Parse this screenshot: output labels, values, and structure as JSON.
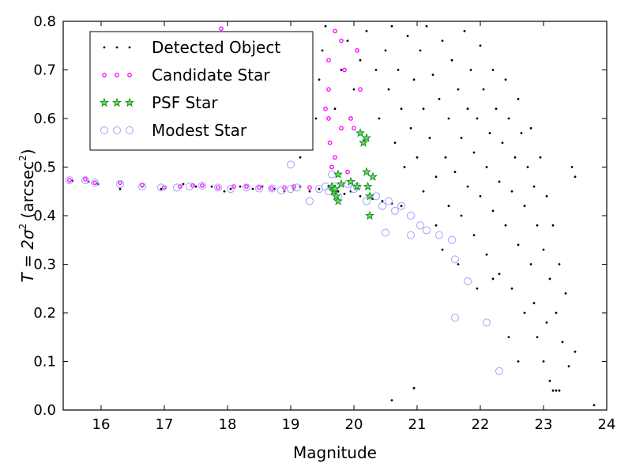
{
  "chart_data": {
    "type": "scatter",
    "title": "",
    "xlabel": "Magnitude",
    "ylabel_prefix": "T = 2σ",
    "ylabel_unit_open": " (arcsec",
    "ylabel_unit_close": ")",
    "superscript": "2",
    "xlim": [
      15.4,
      24.0
    ],
    "ylim": [
      0.0,
      0.8
    ],
    "x_ticks": [
      16,
      17,
      18,
      19,
      20,
      21,
      22,
      23,
      24
    ],
    "x_tick_labels": [
      "16",
      "17",
      "18",
      "19",
      "20",
      "21",
      "22",
      "23",
      "24"
    ],
    "y_ticks": [
      0.0,
      0.1,
      0.2,
      0.3,
      0.4,
      0.5,
      0.6,
      0.7,
      0.8
    ],
    "y_tick_labels": [
      "0.0",
      "0.1",
      "0.2",
      "0.3",
      "0.4",
      "0.5",
      "0.6",
      "0.7",
      "0.8"
    ],
    "grid": false,
    "legend_position": "top-left",
    "series": [
      {
        "name": "Detected Object",
        "marker": "dot",
        "color": "#000000",
        "points": [
          [
            15.55,
            0.472
          ],
          [
            15.8,
            0.47
          ],
          [
            15.95,
            0.465
          ],
          [
            16.3,
            0.455
          ],
          [
            16.65,
            0.46
          ],
          [
            16.95,
            0.455
          ],
          [
            17.3,
            0.465
          ],
          [
            17.5,
            0.46
          ],
          [
            17.75,
            0.46
          ],
          [
            17.95,
            0.45
          ],
          [
            18.05,
            0.455
          ],
          [
            18.2,
            0.46
          ],
          [
            18.4,
            0.455
          ],
          [
            18.55,
            0.46
          ],
          [
            18.75,
            0.455
          ],
          [
            18.9,
            0.45
          ],
          [
            19.05,
            0.455
          ],
          [
            19.15,
            0.46
          ],
          [
            19.3,
            0.45
          ],
          [
            19.45,
            0.455
          ],
          [
            19.6,
            0.46
          ],
          [
            19.75,
            0.45
          ],
          [
            19.85,
            0.445
          ],
          [
            19.95,
            0.45
          ],
          [
            20.1,
            0.44
          ],
          [
            20.3,
            0.435
          ],
          [
            20.45,
            0.43
          ],
          [
            20.6,
            0.425
          ],
          [
            20.75,
            0.42
          ],
          [
            19.15,
            0.52
          ],
          [
            19.3,
            0.56
          ],
          [
            19.4,
            0.6
          ],
          [
            19.45,
            0.68
          ],
          [
            19.5,
            0.74
          ],
          [
            19.55,
            0.79
          ],
          [
            19.7,
            0.62
          ],
          [
            19.8,
            0.7
          ],
          [
            19.9,
            0.76
          ],
          [
            20.0,
            0.66
          ],
          [
            20.1,
            0.72
          ],
          [
            20.2,
            0.78
          ],
          [
            20.35,
            0.7
          ],
          [
            20.4,
            0.6
          ],
          [
            20.5,
            0.74
          ],
          [
            20.55,
            0.66
          ],
          [
            20.6,
            0.79
          ],
          [
            20.65,
            0.55
          ],
          [
            20.7,
            0.7
          ],
          [
            20.75,
            0.62
          ],
          [
            20.8,
            0.5
          ],
          [
            20.85,
            0.77
          ],
          [
            20.9,
            0.58
          ],
          [
            20.95,
            0.68
          ],
          [
            21.0,
            0.52
          ],
          [
            21.05,
            0.74
          ],
          [
            21.1,
            0.45
          ],
          [
            21.1,
            0.62
          ],
          [
            21.15,
            0.79
          ],
          [
            21.2,
            0.56
          ],
          [
            21.25,
            0.69
          ],
          [
            21.3,
            0.48
          ],
          [
            21.3,
            0.38
          ],
          [
            21.35,
            0.64
          ],
          [
            21.4,
            0.76
          ],
          [
            21.45,
            0.52
          ],
          [
            21.5,
            0.6
          ],
          [
            21.5,
            0.42
          ],
          [
            21.55,
            0.72
          ],
          [
            21.6,
            0.49
          ],
          [
            21.65,
            0.66
          ],
          [
            21.7,
            0.56
          ],
          [
            21.7,
            0.4
          ],
          [
            21.75,
            0.78
          ],
          [
            21.8,
            0.62
          ],
          [
            21.8,
            0.46
          ],
          [
            21.85,
            0.7
          ],
          [
            21.9,
            0.53
          ],
          [
            21.9,
            0.36
          ],
          [
            21.95,
            0.6
          ],
          [
            22.0,
            0.75
          ],
          [
            22.0,
            0.44
          ],
          [
            22.05,
            0.66
          ],
          [
            22.1,
            0.5
          ],
          [
            22.1,
            0.32
          ],
          [
            22.15,
            0.57
          ],
          [
            22.2,
            0.7
          ],
          [
            22.2,
            0.41
          ],
          [
            22.25,
            0.62
          ],
          [
            22.3,
            0.47
          ],
          [
            22.3,
            0.28
          ],
          [
            22.35,
            0.55
          ],
          [
            22.4,
            0.68
          ],
          [
            22.4,
            0.38
          ],
          [
            22.45,
            0.6
          ],
          [
            22.5,
            0.45
          ],
          [
            22.5,
            0.25
          ],
          [
            22.55,
            0.52
          ],
          [
            22.6,
            0.64
          ],
          [
            22.6,
            0.34
          ],
          [
            22.65,
            0.57
          ],
          [
            22.7,
            0.42
          ],
          [
            22.7,
            0.2
          ],
          [
            22.75,
            0.5
          ],
          [
            22.8,
            0.58
          ],
          [
            22.8,
            0.3
          ],
          [
            22.85,
            0.46
          ],
          [
            22.9,
            0.38
          ],
          [
            22.9,
            0.15
          ],
          [
            22.95,
            0.52
          ],
          [
            23.0,
            0.33
          ],
          [
            23.0,
            0.1
          ],
          [
            23.05,
            0.44
          ],
          [
            23.1,
            0.27
          ],
          [
            23.1,
            0.06
          ],
          [
            23.15,
            0.38
          ],
          [
            23.2,
            0.2
          ],
          [
            23.2,
            0.04
          ],
          [
            23.25,
            0.3
          ],
          [
            23.3,
            0.14
          ],
          [
            23.35,
            0.24
          ],
          [
            23.4,
            0.09
          ],
          [
            23.45,
            0.5
          ],
          [
            23.5,
            0.48
          ],
          [
            23.5,
            0.12
          ],
          [
            23.8,
            0.01
          ],
          [
            20.6,
            0.02
          ],
          [
            20.95,
            0.045
          ],
          [
            23.25,
            0.04
          ],
          [
            23.15,
            0.04
          ],
          [
            22.2,
            0.27
          ],
          [
            22.45,
            0.15
          ],
          [
            21.65,
            0.3
          ],
          [
            21.95,
            0.25
          ],
          [
            22.6,
            0.1
          ],
          [
            23.05,
            0.18
          ],
          [
            21.4,
            0.33
          ],
          [
            22.85,
            0.22
          ]
        ]
      },
      {
        "name": "Candidate Star",
        "marker": "ring",
        "color": "#ff00ff",
        "points": [
          [
            15.5,
            0.473
          ],
          [
            15.75,
            0.475
          ],
          [
            15.9,
            0.468
          ],
          [
            16.3,
            0.468
          ],
          [
            16.65,
            0.463
          ],
          [
            17.0,
            0.458
          ],
          [
            17.25,
            0.46
          ],
          [
            17.45,
            0.462
          ],
          [
            17.6,
            0.462
          ],
          [
            17.85,
            0.458
          ],
          [
            18.1,
            0.46
          ],
          [
            18.3,
            0.46
          ],
          [
            18.5,
            0.458
          ],
          [
            18.7,
            0.456
          ],
          [
            18.9,
            0.458
          ],
          [
            19.05,
            0.46
          ],
          [
            19.3,
            0.458
          ],
          [
            17.9,
            0.785
          ],
          [
            19.55,
            0.62
          ],
          [
            19.6,
            0.66
          ],
          [
            19.6,
            0.72
          ],
          [
            19.62,
            0.55
          ],
          [
            19.65,
            0.5
          ],
          [
            19.7,
            0.52
          ],
          [
            19.7,
            0.78
          ],
          [
            19.8,
            0.58
          ],
          [
            19.85,
            0.7
          ],
          [
            19.95,
            0.6
          ],
          [
            20.0,
            0.58
          ],
          [
            20.05,
            0.74
          ],
          [
            20.1,
            0.66
          ],
          [
            19.9,
            0.49
          ],
          [
            19.8,
            0.76
          ],
          [
            19.6,
            0.6
          ]
        ]
      },
      {
        "name": "PSF Star",
        "marker": "star",
        "color": "#22aa22",
        "points": [
          [
            19.65,
            0.46
          ],
          [
            19.68,
            0.45
          ],
          [
            19.7,
            0.455
          ],
          [
            19.72,
            0.44
          ],
          [
            19.75,
            0.485
          ],
          [
            19.75,
            0.43
          ],
          [
            19.8,
            0.465
          ],
          [
            19.95,
            0.47
          ],
          [
            20.05,
            0.46
          ],
          [
            20.1,
            0.57
          ],
          [
            20.15,
            0.55
          ],
          [
            20.2,
            0.49
          ],
          [
            20.22,
            0.46
          ],
          [
            20.25,
            0.44
          ],
          [
            20.25,
            0.4
          ],
          [
            20.3,
            0.48
          ],
          [
            20.2,
            0.56
          ]
        ]
      },
      {
        "name": "Modest Star",
        "marker": "circle",
        "color": "#a0a0ff",
        "points": [
          [
            15.5,
            0.473
          ],
          [
            15.75,
            0.473
          ],
          [
            15.9,
            0.468
          ],
          [
            16.3,
            0.465
          ],
          [
            16.65,
            0.46
          ],
          [
            16.95,
            0.458
          ],
          [
            17.2,
            0.458
          ],
          [
            17.4,
            0.46
          ],
          [
            17.6,
            0.462
          ],
          [
            17.85,
            0.458
          ],
          [
            18.05,
            0.455
          ],
          [
            18.3,
            0.458
          ],
          [
            18.5,
            0.456
          ],
          [
            18.7,
            0.456
          ],
          [
            18.85,
            0.452
          ],
          [
            19.0,
            0.455
          ],
          [
            19.1,
            0.458
          ],
          [
            19.3,
            0.43
          ],
          [
            19.45,
            0.455
          ],
          [
            19.55,
            0.46
          ],
          [
            19.6,
            0.45
          ],
          [
            19.7,
            0.46
          ],
          [
            19.75,
            0.44
          ],
          [
            19.9,
            0.465
          ],
          [
            20.05,
            0.46
          ],
          [
            20.2,
            0.43
          ],
          [
            20.35,
            0.44
          ],
          [
            20.45,
            0.42
          ],
          [
            20.55,
            0.43
          ],
          [
            20.65,
            0.41
          ],
          [
            20.75,
            0.42
          ],
          [
            20.9,
            0.4
          ],
          [
            21.05,
            0.38
          ],
          [
            21.15,
            0.37
          ],
          [
            20.5,
            0.365
          ],
          [
            20.9,
            0.36
          ],
          [
            21.35,
            0.36
          ],
          [
            21.55,
            0.35
          ],
          [
            21.6,
            0.31
          ],
          [
            21.8,
            0.265
          ],
          [
            21.6,
            0.19
          ],
          [
            22.1,
            0.18
          ],
          [
            22.3,
            0.08
          ],
          [
            19.0,
            0.505
          ],
          [
            19.65,
            0.485
          ],
          [
            20.0,
            0.455
          ]
        ]
      }
    ]
  }
}
